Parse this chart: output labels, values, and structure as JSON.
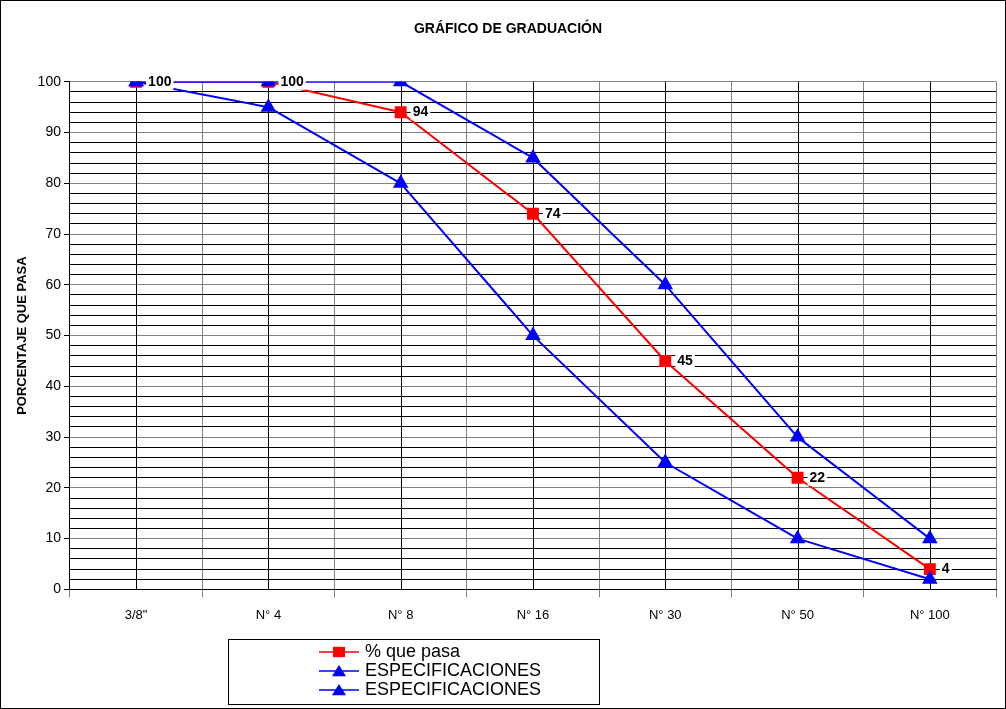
{
  "chart_data": {
    "type": "line",
    "title": "GRÁFICO DE GRADUACIÓN",
    "ylabel": "PORCENTAJE QUE PASA",
    "categories": [
      "3/8\"",
      "N° 4",
      "N° 8",
      "N° 16",
      "N° 30",
      "N° 50",
      "N° 100"
    ],
    "series": [
      {
        "name": "% que pasa",
        "color": "#ff0000",
        "marker": "square",
        "data_labels": true,
        "values": [
          100,
          100,
          94,
          74,
          45,
          22,
          4
        ]
      },
      {
        "name": "ESPECIFICACIONES",
        "color": "#0000ff",
        "marker": "triangle",
        "values": [
          100,
          100,
          100,
          85,
          60,
          30,
          10
        ]
      },
      {
        "name": "ESPECIFICACIONES",
        "color": "#0000ff",
        "marker": "triangle",
        "values": [
          100,
          95,
          80,
          50,
          25,
          10,
          2
        ]
      }
    ],
    "ylim": [
      0,
      100
    ],
    "yticks": [
      0,
      {
        "value": 2,
        "label": null
      },
      {
        "value": 4,
        "label": null
      },
      {
        "value": 6,
        "label": null
      },
      {
        "value": 8,
        "label": null
      },
      10,
      {
        "value": 12,
        "label": null
      },
      {
        "value": 14,
        "label": null
      },
      {
        "value": 16,
        "label": null
      },
      {
        "value": 18,
        "label": null
      },
      20,
      {
        "value": 22,
        "label": null
      },
      {
        "value": 24,
        "label": null
      },
      {
        "value": 26,
        "label": null
      },
      {
        "value": 28,
        "label": null
      },
      30,
      {
        "value": 32,
        "label": null
      },
      {
        "value": 34,
        "label": null
      },
      {
        "value": 36,
        "label": null
      },
      {
        "value": 38,
        "label": null
      },
      40,
      {
        "value": 42,
        "label": null
      },
      {
        "value": 44,
        "label": null
      },
      {
        "value": 46,
        "label": null
      },
      {
        "value": 48,
        "label": null
      },
      50,
      {
        "value": 52,
        "label": null
      },
      {
        "value": 54,
        "label": null
      },
      {
        "value": 56,
        "label": null
      },
      {
        "value": 58,
        "label": null
      },
      60,
      {
        "value": 62,
        "label": null
      },
      {
        "value": 64,
        "label": null
      },
      {
        "value": 66,
        "label": null
      },
      {
        "value": 68,
        "label": null
      },
      70,
      {
        "value": 72,
        "label": null
      },
      {
        "value": 74,
        "label": null
      },
      {
        "value": 76,
        "label": null
      },
      {
        "value": 78,
        "label": null
      },
      80,
      {
        "value": 82,
        "label": null
      },
      {
        "value": 84,
        "label": null
      },
      {
        "value": 86,
        "label": null
      },
      {
        "value": 88,
        "label": null
      },
      90,
      {
        "value": 92,
        "label": null
      },
      {
        "value": 94,
        "label": null
      },
      {
        "value": 96,
        "label": null
      },
      {
        "value": 98,
        "label": null
      },
      100
    ],
    "grid": true,
    "legend": "bottom",
    "line_style": "solid"
  }
}
